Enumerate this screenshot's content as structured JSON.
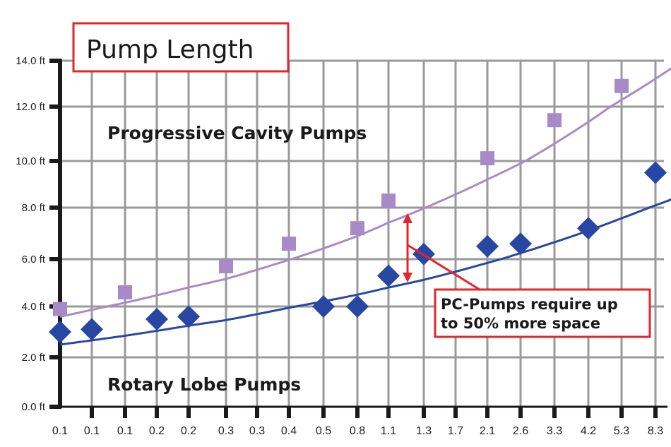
{
  "chart_data": {
    "type": "scatter",
    "title": "Pump Length",
    "xlabel": "",
    "ylabel": "",
    "categories": [
      "0.1",
      "0.1",
      "0.1",
      "0.2",
      "0.2",
      "0.3",
      "0.3",
      "0.4",
      "0.5",
      "0.8",
      "1.1",
      "1.3",
      "1.7",
      "2.1",
      "2.6",
      "3.3",
      "4.2",
      "5.3",
      "8.3"
    ],
    "y_ticks": [
      "0.0 ft",
      "2.0 ft",
      "4.0 ft",
      "6.0 ft",
      "8.0 ft",
      "10.0 ft",
      "12.0 ft",
      "14.0 ft"
    ],
    "ylim": [
      0,
      14
    ],
    "grid": true,
    "series": [
      {
        "name": "Progressive Cavity Pumps",
        "color": "#a78bc9",
        "marker": "square",
        "points": [
          {
            "x_index": 0,
            "y": 3.9
          },
          {
            "x_index": 2,
            "y": 4.6
          },
          {
            "x_index": 5,
            "y": 5.7
          },
          {
            "x_index": 7,
            "y": 6.6
          },
          {
            "x_index": 9,
            "y": 7.2
          },
          {
            "x_index": 10,
            "y": 8.3
          },
          {
            "x_index": 13,
            "y": 10.1
          },
          {
            "x_index": 15,
            "y": 11.5
          },
          {
            "x_index": 17,
            "y": 12.9
          }
        ],
        "trend": {
          "type": "exponential",
          "start": 3.6,
          "end": 14.0
        }
      },
      {
        "name": "Rotary Lobe Pumps",
        "color": "#2747a3",
        "marker": "diamond",
        "points": [
          {
            "x_index": 0,
            "y": 3.0
          },
          {
            "x_index": 1,
            "y": 3.1
          },
          {
            "x_index": 3,
            "y": 3.5
          },
          {
            "x_index": 4,
            "y": 3.6
          },
          {
            "x_index": 8,
            "y": 4.0
          },
          {
            "x_index": 9,
            "y": 4.0
          },
          {
            "x_index": 10,
            "y": 5.3
          },
          {
            "x_index": 11,
            "y": 6.2
          },
          {
            "x_index": 13,
            "y": 6.5
          },
          {
            "x_index": 14,
            "y": 6.6
          },
          {
            "x_index": 16,
            "y": 7.2
          },
          {
            "x_index": 18,
            "y": 9.5
          }
        ],
        "trend": {
          "type": "exponential",
          "start": 2.5,
          "end": 8.7
        }
      }
    ],
    "annotation": {
      "line1": "PC-Pumps require up",
      "line2": "to 50% more space",
      "color": "#e3262b"
    }
  }
}
